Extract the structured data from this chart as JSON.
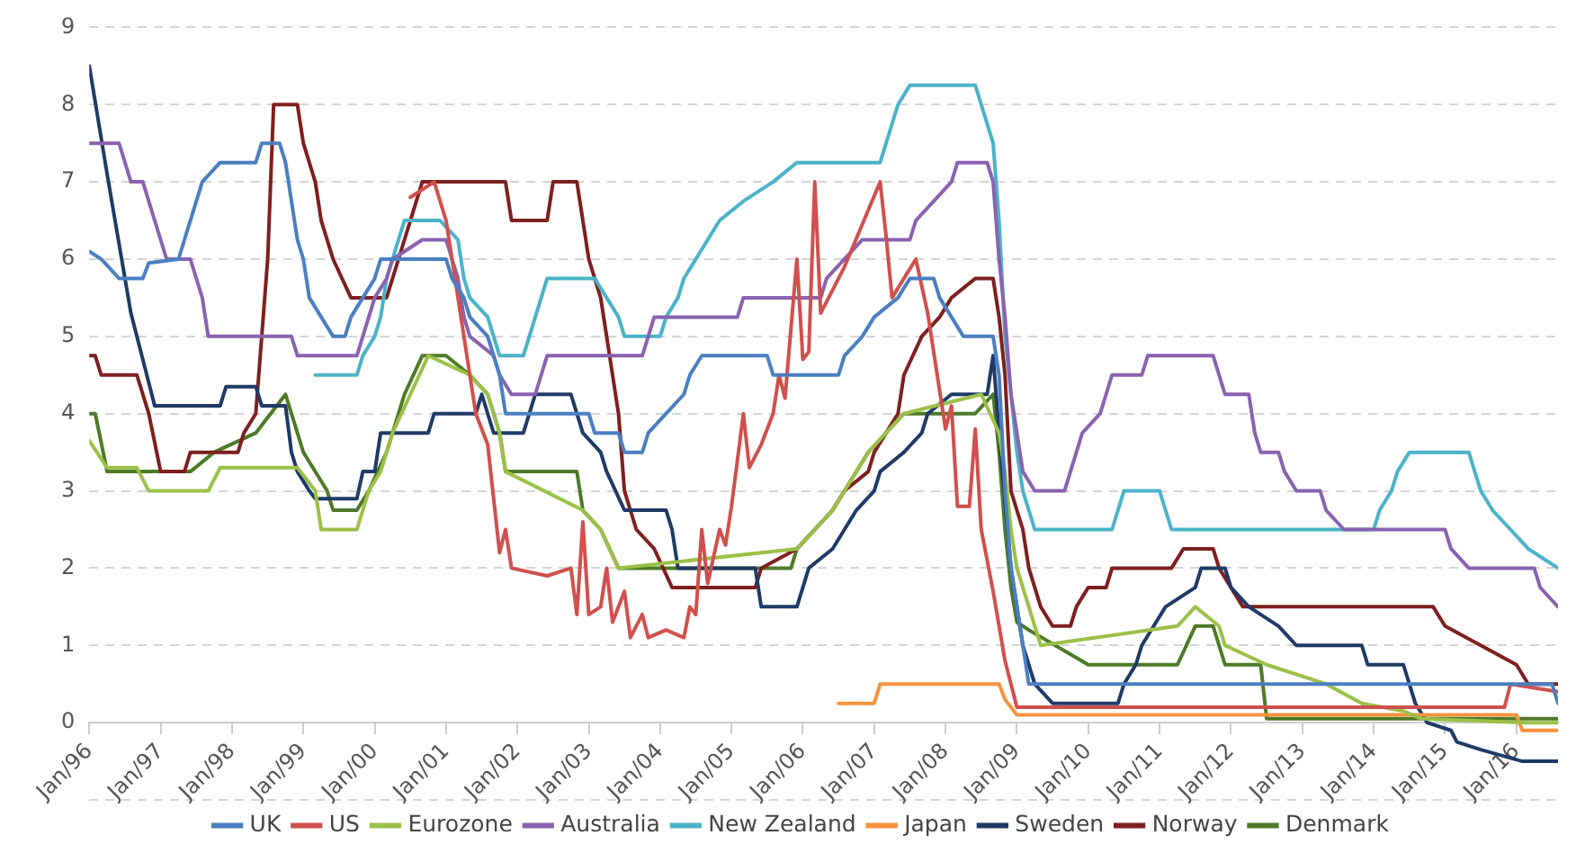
{
  "chart_data": {
    "type": "line",
    "ylim": [
      -1,
      9
    ],
    "yticks": [
      {
        "value": -1,
        "label": null
      },
      0,
      1,
      2,
      3,
      4,
      5,
      6,
      7,
      8,
      9
    ],
    "xlim": [
      "1996-01",
      "2016-08"
    ],
    "xticks": [
      {
        "value": "1996-01",
        "label": "Jan/96"
      },
      {
        "value": "1997-01",
        "label": "Jan/97"
      },
      {
        "value": "1998-01",
        "label": "Jan/98"
      },
      {
        "value": "1999-01",
        "label": "Jan/99"
      },
      {
        "value": "2000-01",
        "label": "Jan/00"
      },
      {
        "value": "2001-01",
        "label": "Jan/01"
      },
      {
        "value": "2002-01",
        "label": "Jan/02"
      },
      {
        "value": "2003-01",
        "label": "Jan/03"
      },
      {
        "value": "2004-01",
        "label": "Jan/04"
      },
      {
        "value": "2005-01",
        "label": "Jan/05"
      },
      {
        "value": "2006-01",
        "label": "Jan/06"
      },
      {
        "value": "2007-01",
        "label": "Jan/07"
      },
      {
        "value": "2008-01",
        "label": "Jan/08"
      },
      {
        "value": "2009-01",
        "label": "Jan/09"
      },
      {
        "value": "2010-01",
        "label": "Jan/10"
      },
      {
        "value": "2011-01",
        "label": "Jan/11"
      },
      {
        "value": "2012-01",
        "label": "Jan/12"
      },
      {
        "value": "2013-01",
        "label": "Jan/13"
      },
      {
        "value": "2014-01",
        "label": "Jan/14"
      },
      {
        "value": "2015-01",
        "label": "Jan/15"
      },
      {
        "value": "2016-01",
        "label": "Jan/16"
      }
    ],
    "grid": "y",
    "legend": "bottom",
    "series": [
      {
        "name": "UK",
        "color": "#4a7fc1",
        "x": [
          "1996-01",
          "1996-03",
          "1996-06",
          "1996-10",
          "1996-11",
          "1997-04",
          "1997-05",
          "1997-06",
          "1997-07",
          "1997-08",
          "1997-11",
          "1998-05",
          "1998-06",
          "1998-09",
          "1998-10",
          "1998-11",
          "1998-12",
          "1999-01",
          "1999-02",
          "1999-04",
          "1999-06",
          "1999-08",
          "1999-09",
          "1999-11",
          "2000-01",
          "2000-02",
          "2001-01",
          "2001-02",
          "2001-04",
          "2001-05",
          "2001-08",
          "2001-09",
          "2001-10",
          "2001-11",
          "2003-01",
          "2003-02",
          "2003-06",
          "2003-07",
          "2003-10",
          "2003-11",
          "2004-02",
          "2004-05",
          "2004-06",
          "2004-08",
          "2005-07",
          "2005-08",
          "2006-07",
          "2006-08",
          "2006-11",
          "2007-01",
          "2007-05",
          "2007-07",
          "2007-11",
          "2007-12",
          "2008-02",
          "2008-04",
          "2008-09",
          "2008-10",
          "2008-11",
          "2008-12",
          "2009-01",
          "2009-02",
          "2009-03",
          "2016-07",
          "2016-08"
        ],
        "values": [
          6.1,
          6.0,
          5.75,
          5.75,
          5.95,
          6.0,
          6.25,
          6.5,
          6.75,
          7.0,
          7.25,
          7.25,
          7.5,
          7.5,
          7.25,
          6.75,
          6.25,
          6.0,
          5.5,
          5.25,
          5.0,
          5.0,
          5.25,
          5.5,
          5.75,
          6.0,
          6.0,
          5.75,
          5.5,
          5.25,
          5.0,
          4.75,
          4.5,
          4.0,
          4.0,
          3.75,
          3.75,
          3.5,
          3.5,
          3.75,
          4.0,
          4.25,
          4.5,
          4.75,
          4.75,
          4.5,
          4.5,
          4.75,
          5.0,
          5.25,
          5.5,
          5.75,
          5.75,
          5.5,
          5.25,
          5.0,
          5.0,
          4.5,
          3.0,
          2.0,
          1.5,
          1.0,
          0.5,
          0.5,
          0.25
        ]
      },
      {
        "name": "US",
        "color": "#d0504d",
        "x": [
          "2000-07",
          "2000-11",
          "2001-01",
          "2001-02",
          "2001-04",
          "2001-06",
          "2001-08",
          "2001-10",
          "2001-11",
          "2001-12",
          "2002-06",
          "2002-10",
          "2002-11",
          "2002-12",
          "2003-01",
          "2003-03",
          "2003-04",
          "2003-05",
          "2003-07",
          "2003-08",
          "2003-10",
          "2003-11",
          "2004-02",
          "2004-05",
          "2004-06",
          "2004-07",
          "2004-08",
          "2004-09",
          "2004-11",
          "2004-12",
          "2005-01",
          "2005-03",
          "2005-04",
          "2005-06",
          "2005-08",
          "2005-09",
          "2005-10",
          "2005-12",
          "2006-01",
          "2006-02",
          "2006-03",
          "2006-04",
          "2006-08",
          "2007-02",
          "2007-03",
          "2007-04",
          "2007-08",
          "2007-10",
          "2008-01",
          "2008-02",
          "2008-03",
          "2008-05",
          "2008-06",
          "2008-07",
          "2008-09",
          "2008-11",
          "2009-01",
          "2015-11",
          "2015-12",
          "2016-08"
        ],
        "values": [
          6.8,
          7.0,
          6.5,
          6.0,
          5.0,
          4.0,
          3.6,
          2.2,
          2.5,
          2.0,
          1.9,
          2.0,
          1.4,
          2.6,
          1.4,
          1.5,
          2.0,
          1.3,
          1.7,
          1.1,
          1.4,
          1.1,
          1.2,
          1.1,
          1.5,
          1.4,
          2.5,
          1.8,
          2.5,
          2.3,
          2.8,
          4.0,
          3.3,
          3.6,
          4.0,
          4.5,
          4.2,
          6.0,
          4.7,
          4.8,
          7.0,
          5.3,
          5.9,
          7.0,
          6.3,
          5.5,
          6.0,
          5.3,
          3.8,
          4.1,
          2.8,
          2.8,
          3.8,
          2.5,
          1.7,
          0.8,
          0.2,
          0.2,
          0.5,
          0.4
        ]
      },
      {
        "name": "Eurozone",
        "color": "#9bc048",
        "x": [
          "1996-01",
          "1996-04",
          "1996-09",
          "1996-11",
          "1997-09",
          "1997-11",
          "1998-12",
          "1999-03",
          "1999-04",
          "1999-10",
          "1999-12",
          "2000-02",
          "2000-04",
          "2000-07",
          "2000-10",
          "2001-05",
          "2001-08",
          "2001-10",
          "2001-11",
          "2002-12",
          "2003-03",
          "2003-06",
          "2005-12",
          "2006-03",
          "2006-06",
          "2006-08",
          "2006-10",
          "2006-12",
          "2007-03",
          "2007-06",
          "2008-07",
          "2008-10",
          "2008-11",
          "2008-12",
          "2009-01",
          "2009-03",
          "2009-04",
          "2009-05",
          "2011-04",
          "2011-07",
          "2011-11",
          "2011-12",
          "2012-07",
          "2013-05",
          "2013-11",
          "2014-06",
          "2014-09",
          "2016-03",
          "2016-08"
        ],
        "values": [
          3.65,
          3.3,
          3.3,
          3.0,
          3.0,
          3.3,
          3.3,
          3.0,
          2.5,
          2.5,
          3.0,
          3.25,
          3.75,
          4.25,
          4.75,
          4.5,
          4.25,
          3.75,
          3.25,
          2.75,
          2.5,
          2.0,
          2.25,
          2.5,
          2.75,
          3.0,
          3.25,
          3.5,
          3.75,
          4.0,
          4.25,
          3.75,
          3.25,
          2.5,
          2.0,
          1.5,
          1.25,
          1.0,
          1.25,
          1.5,
          1.25,
          1.0,
          0.75,
          0.5,
          0.25,
          0.15,
          0.05,
          0.0,
          0.0
        ]
      },
      {
        "name": "Australia",
        "color": "#8a62b0",
        "x": [
          "1996-01",
          "1996-06",
          "1996-08",
          "1996-10",
          "1997-02",
          "1997-06",
          "1997-08",
          "1997-09",
          "1998-11",
          "1998-12",
          "1999-10",
          "1999-11",
          "2000-01",
          "2000-03",
          "2000-04",
          "2000-09",
          "2001-01",
          "2001-03",
          "2001-04",
          "2001-05",
          "2001-09",
          "2001-10",
          "2001-12",
          "2002-04",
          "2002-05",
          "2002-06",
          "2003-10",
          "2003-11",
          "2003-12",
          "2005-02",
          "2005-03",
          "2006-04",
          "2006-05",
          "2006-08",
          "2006-11",
          "2007-07",
          "2007-08",
          "2007-11",
          "2008-02",
          "2008-03",
          "2008-08",
          "2008-09",
          "2008-10",
          "2008-11",
          "2008-12",
          "2009-02",
          "2009-04",
          "2009-09",
          "2009-10",
          "2009-11",
          "2009-12",
          "2010-03",
          "2010-04",
          "2010-05",
          "2010-10",
          "2010-11",
          "2011-10",
          "2011-11",
          "2011-12",
          "2012-04",
          "2012-05",
          "2012-06",
          "2012-09",
          "2012-10",
          "2012-12",
          "2013-04",
          "2013-05",
          "2013-08",
          "2015-01",
          "2015-02",
          "2015-05",
          "2016-04",
          "2016-05",
          "2016-08"
        ],
        "values": [
          7.5,
          7.5,
          7.0,
          7.0,
          6.0,
          6.0,
          5.5,
          5.0,
          5.0,
          4.75,
          4.75,
          5.0,
          5.5,
          5.75,
          6.0,
          6.25,
          6.25,
          5.75,
          5.25,
          5.0,
          4.75,
          4.5,
          4.25,
          4.25,
          4.5,
          4.75,
          4.75,
          5.0,
          5.25,
          5.25,
          5.5,
          5.5,
          5.75,
          6.0,
          6.25,
          6.25,
          6.5,
          6.75,
          7.0,
          7.25,
          7.25,
          7.0,
          6.0,
          5.25,
          4.25,
          3.25,
          3.0,
          3.0,
          3.25,
          3.5,
          3.75,
          4.0,
          4.25,
          4.5,
          4.5,
          4.75,
          4.75,
          4.5,
          4.25,
          4.25,
          3.75,
          3.5,
          3.5,
          3.25,
          3.0,
          3.0,
          2.75,
          2.5,
          2.5,
          2.25,
          2.0,
          2.0,
          1.75,
          1.5
        ]
      },
      {
        "name": "New Zealand",
        "color": "#4bb3c9",
        "x": [
          "1999-03",
          "1999-10",
          "1999-11",
          "2000-01",
          "2000-02",
          "2000-03",
          "2000-04",
          "2000-06",
          "2000-12",
          "2001-03",
          "2001-04",
          "2001-05",
          "2001-08",
          "2001-09",
          "2001-10",
          "2002-02",
          "2002-03",
          "2002-04",
          "2002-05",
          "2002-06",
          "2003-02",
          "2003-04",
          "2003-06",
          "2003-07",
          "2004-01",
          "2004-02",
          "2004-04",
          "2004-05",
          "2004-07",
          "2004-09",
          "2004-11",
          "2005-03",
          "2005-08",
          "2005-12",
          "2007-02",
          "2007-03",
          "2007-04",
          "2007-05",
          "2007-07",
          "2008-06",
          "2008-07",
          "2008-09",
          "2008-10",
          "2008-11",
          "2009-01",
          "2009-02",
          "2009-04",
          "2010-05",
          "2010-06",
          "2010-07",
          "2011-01",
          "2011-03",
          "2014-01",
          "2014-02",
          "2014-04",
          "2014-05",
          "2014-07",
          "2015-05",
          "2015-06",
          "2015-07",
          "2015-09",
          "2015-12",
          "2016-03",
          "2016-08"
        ],
        "values": [
          4.5,
          4.5,
          4.75,
          5.0,
          5.25,
          5.75,
          6.0,
          6.5,
          6.5,
          6.25,
          5.75,
          5.5,
          5.25,
          5.0,
          4.75,
          4.75,
          5.0,
          5.25,
          5.5,
          5.75,
          5.75,
          5.5,
          5.25,
          5.0,
          5.0,
          5.25,
          5.5,
          5.75,
          6.0,
          6.25,
          6.5,
          6.75,
          7.0,
          7.25,
          7.25,
          7.5,
          7.75,
          8.0,
          8.25,
          8.25,
          8.0,
          7.5,
          6.5,
          5.0,
          3.5,
          3.0,
          2.5,
          2.5,
          2.75,
          3.0,
          3.0,
          2.5,
          2.5,
          2.75,
          3.0,
          3.25,
          3.5,
          3.5,
          3.25,
          3.0,
          2.75,
          2.5,
          2.25,
          2.0
        ]
      },
      {
        "name": "Japan",
        "color": "#f5923e",
        "x": [
          "2006-07",
          "2007-01",
          "2007-02",
          "2008-10",
          "2008-11",
          "2009-01",
          "2016-01",
          "2016-02",
          "2016-08"
        ],
        "values": [
          0.25,
          0.25,
          0.5,
          0.5,
          0.3,
          0.1,
          0.1,
          -0.1,
          -0.1
        ]
      },
      {
        "name": "Sweden",
        "color": "#1f3a66",
        "x": [
          "1996-01",
          "1996-04",
          "1996-08",
          "1996-12",
          "1997-11",
          "1997-12",
          "1998-05",
          "1998-06",
          "1998-10",
          "1998-11",
          "1998-12",
          "1999-02",
          "1999-03",
          "1999-10",
          "1999-11",
          "2000-01",
          "2000-02",
          "2000-10",
          "2000-11",
          "2001-06",
          "2001-07",
          "2001-09",
          "2002-02",
          "2002-03",
          "2002-04",
          "2002-10",
          "2002-11",
          "2002-12",
          "2003-03",
          "2003-04",
          "2003-07",
          "2004-02",
          "2004-03",
          "2004-04",
          "2005-05",
          "2005-06",
          "2005-12",
          "2006-01",
          "2006-02",
          "2006-06",
          "2006-08",
          "2006-10",
          "2007-01",
          "2007-02",
          "2007-06",
          "2007-09",
          "2007-10",
          "2008-02",
          "2008-08",
          "2008-09",
          "2008-10",
          "2008-12",
          "2009-02",
          "2009-04",
          "2009-07",
          "2010-06",
          "2010-07",
          "2010-09",
          "2010-10",
          "2010-12",
          "2011-02",
          "2011-07",
          "2011-08",
          "2011-12",
          "2012-01",
          "2012-04",
          "2012-09",
          "2012-12",
          "2013-11",
          "2013-12",
          "2014-06",
          "2014-08",
          "2014-10",
          "2015-02",
          "2015-03",
          "2015-07",
          "2016-02",
          "2016-08"
        ],
        "values": [
          8.5,
          7.1,
          5.3,
          4.1,
          4.1,
          4.35,
          4.35,
          4.1,
          4.1,
          3.5,
          3.25,
          3.0,
          2.9,
          2.9,
          3.25,
          3.25,
          3.75,
          3.75,
          4.0,
          4.0,
          4.25,
          3.75,
          3.75,
          4.0,
          4.25,
          4.25,
          4.0,
          3.75,
          3.5,
          3.25,
          2.75,
          2.75,
          2.5,
          2.0,
          2.0,
          1.5,
          1.5,
          1.75,
          2.0,
          2.25,
          2.5,
          2.75,
          3.0,
          3.25,
          3.5,
          3.75,
          4.0,
          4.25,
          4.25,
          4.75,
          3.75,
          2.0,
          1.0,
          0.5,
          0.25,
          0.25,
          0.5,
          0.75,
          1.0,
          1.25,
          1.5,
          1.75,
          2.0,
          2.0,
          1.75,
          1.5,
          1.25,
          1.0,
          1.0,
          0.75,
          0.75,
          0.25,
          0.0,
          -0.1,
          -0.25,
          -0.35,
          -0.5,
          -0.5
        ]
      },
      {
        "name": "Norway",
        "color": "#7f1f1f",
        "x": [
          "1996-01",
          "1996-02",
          "1996-03",
          "1996-09",
          "1996-11",
          "1997-01",
          "1997-05",
          "1997-06",
          "1998-02",
          "1998-03",
          "1998-05",
          "1998-06",
          "1998-07",
          "1998-08",
          "1998-12",
          "1999-01",
          "1999-03",
          "1999-04",
          "1999-06",
          "1999-09",
          "2000-03",
          "2000-04",
          "2000-05",
          "2000-07",
          "2000-09",
          "2001-11",
          "2001-12",
          "2002-06",
          "2002-07",
          "2002-11",
          "2002-12",
          "2003-01",
          "2003-03",
          "2003-04",
          "2003-06",
          "2003-07",
          "2003-09",
          "2003-12",
          "2004-03",
          "2005-05",
          "2005-06",
          "2005-12",
          "2006-03",
          "2006-06",
          "2006-08",
          "2006-12",
          "2007-01",
          "2007-03",
          "2007-05",
          "2007-06",
          "2007-09",
          "2007-12",
          "2008-02",
          "2008-06",
          "2008-09",
          "2008-10",
          "2008-11",
          "2008-12",
          "2009-02",
          "2009-03",
          "2009-05",
          "2009-07",
          "2009-10",
          "2009-11",
          "2010-01",
          "2010-04",
          "2010-05",
          "2011-03",
          "2011-05",
          "2011-10",
          "2011-11",
          "2012-01",
          "2012-03",
          "2014-11",
          "2015-01",
          "2015-07",
          "2016-01",
          "2016-03",
          "2016-08"
        ],
        "values": [
          4.75,
          4.75,
          4.5,
          4.5,
          4.0,
          3.25,
          3.25,
          3.5,
          3.5,
          3.75,
          4.0,
          5.0,
          6.0,
          8.0,
          8.0,
          7.5,
          7.0,
          6.5,
          6.0,
          5.5,
          5.5,
          5.75,
          6.0,
          6.5,
          7.0,
          7.0,
          6.5,
          6.5,
          7.0,
          7.0,
          6.5,
          6.0,
          5.5,
          5.0,
          4.0,
          3.0,
          2.5,
          2.25,
          1.75,
          1.75,
          2.0,
          2.25,
          2.5,
          2.75,
          3.0,
          3.25,
          3.5,
          3.75,
          4.0,
          4.5,
          5.0,
          5.25,
          5.5,
          5.75,
          5.75,
          5.25,
          4.5,
          3.0,
          2.5,
          2.0,
          1.5,
          1.25,
          1.25,
          1.5,
          1.75,
          1.75,
          2.0,
          2.0,
          2.25,
          2.25,
          2.0,
          1.75,
          1.5,
          1.5,
          1.25,
          1.0,
          0.75,
          0.5,
          0.5
        ]
      },
      {
        "name": "Denmark",
        "color": "#4e7a27",
        "x": [
          "1996-01",
          "1996-02",
          "1996-04",
          "1997-06",
          "1997-10",
          "1998-05",
          "1998-10",
          "1998-11",
          "1999-01",
          "1999-05",
          "1999-06",
          "1999-10",
          "1999-12",
          "2000-03",
          "2000-06",
          "2000-09",
          "2001-01",
          "2001-05",
          "2001-08",
          "2001-10",
          "2001-11",
          "2002-11",
          "2002-12",
          "2003-03",
          "2003-06",
          "2005-11",
          "2005-12",
          "2006-03",
          "2006-06",
          "2006-08",
          "2006-10",
          "2006-12",
          "2007-03",
          "2007-06",
          "2008-06",
          "2008-09",
          "2008-10",
          "2008-11",
          "2008-12",
          "2009-01",
          "2009-03",
          "2010-01",
          "2011-04",
          "2011-07",
          "2011-10",
          "2011-12",
          "2012-06",
          "2012-07",
          "2016-08"
        ],
        "values": [
          4.0,
          4.0,
          3.25,
          3.25,
          3.5,
          3.75,
          4.25,
          4.0,
          3.5,
          3.0,
          2.75,
          2.75,
          3.0,
          3.5,
          4.25,
          4.75,
          4.75,
          4.5,
          4.25,
          3.75,
          3.25,
          3.25,
          2.75,
          2.5,
          2.0,
          2.0,
          2.25,
          2.5,
          2.75,
          3.0,
          3.25,
          3.5,
          3.75,
          4.0,
          4.0,
          4.25,
          3.5,
          2.5,
          1.75,
          1.3,
          1.2,
          0.75,
          0.75,
          1.25,
          1.25,
          0.75,
          0.75,
          0.05,
          0.05
        ]
      }
    ]
  }
}
